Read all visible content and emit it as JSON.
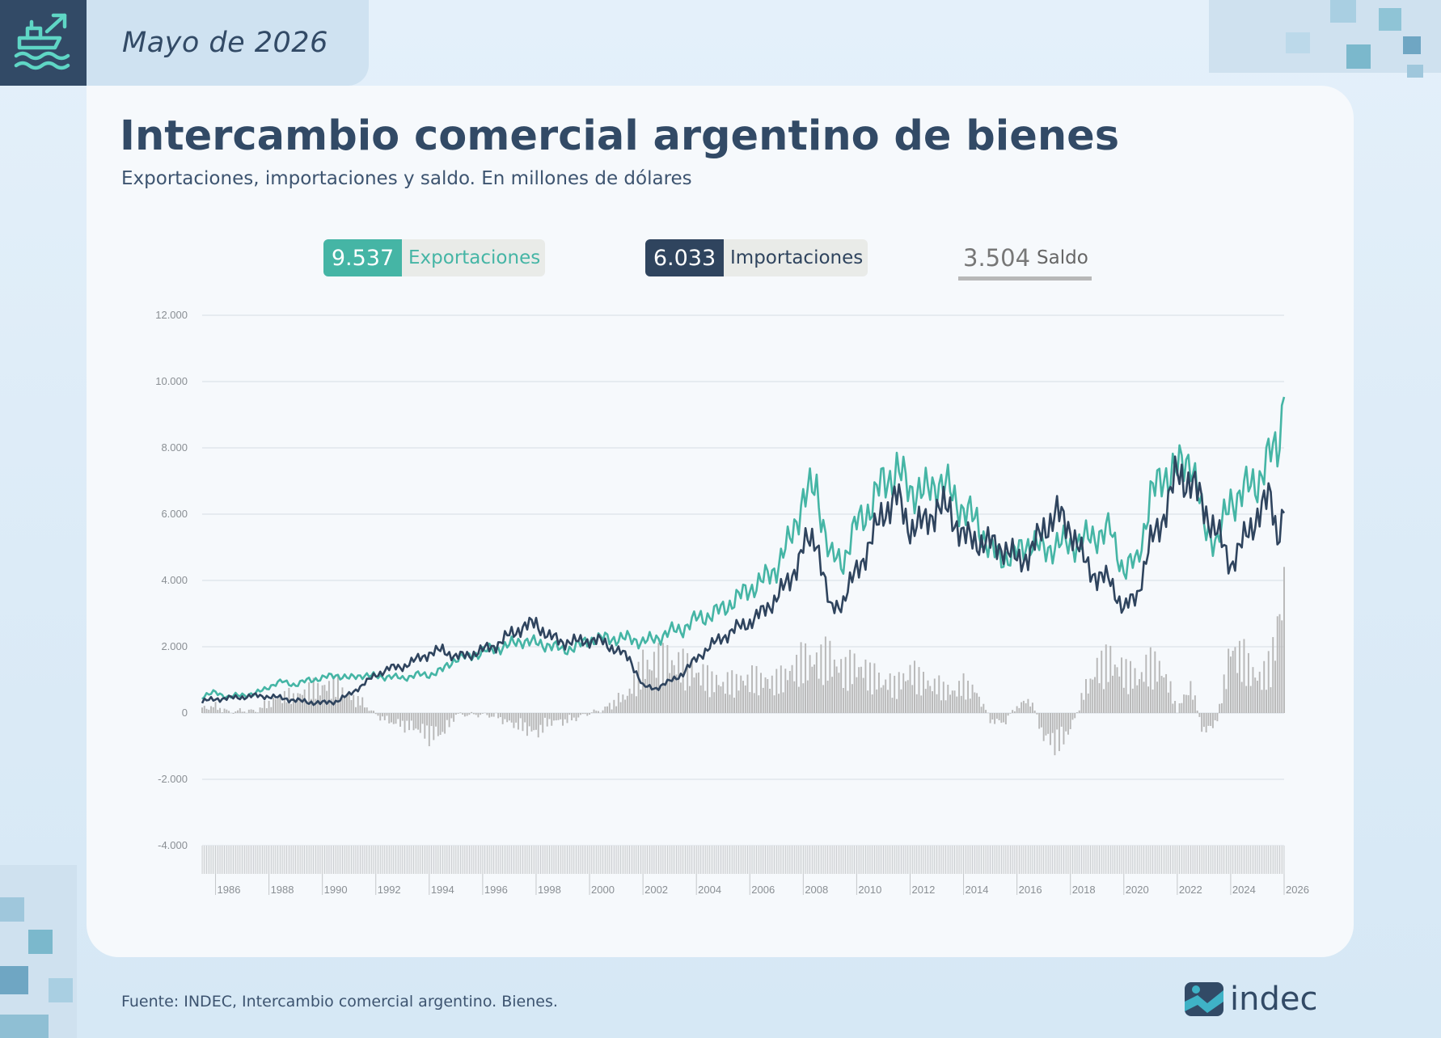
{
  "header": {
    "date_label": "Mayo de 2026",
    "icon": "ship-export-icon"
  },
  "title": "Intercambio comercial argentino de bienes",
  "subtitle": "Exportaciones, importaciones y saldo. En millones de dólares",
  "legend": [
    {
      "value": "9.537",
      "label": "Exportaciones",
      "color": "#45b5a5"
    },
    {
      "value": "6.033",
      "label": "Importaciones",
      "color": "#2f445e"
    },
    {
      "value": "3.504",
      "label": "Saldo",
      "color": "#b8b8b8"
    }
  ],
  "source": "Fuente: INDEC, Intercambio comercial argentino. Bienes.",
  "logo": {
    "text": "indec",
    "icon": "indec-logo-icon"
  },
  "chart_data": {
    "type": "line",
    "y_ticks": [
      "12.000",
      "10.000",
      "8.000",
      "6.000",
      "4.000",
      "2.000",
      "0",
      "-2.000",
      "-4.000"
    ],
    "ylim": [
      -4000,
      12000
    ],
    "x_ticks": [
      "1986",
      "1988",
      "1990",
      "1992",
      "1994",
      "1996",
      "1998",
      "2000",
      "2002",
      "2004",
      "2006",
      "2008",
      "2010",
      "2012",
      "2014",
      "2016",
      "2018",
      "2020",
      "2022",
      "2024",
      "2026"
    ],
    "xlim": [
      1985.5,
      2026.0
    ],
    "grid": true,
    "series": [
      {
        "name": "Exportaciones",
        "color": "#45b5a5",
        "type": "line",
        "points": [
          [
            1985.5,
            500
          ],
          [
            1986,
            620
          ],
          [
            1986.5,
            480
          ],
          [
            1987,
            550
          ],
          [
            1987.5,
            580
          ],
          [
            1988,
            800
          ],
          [
            1988.5,
            950
          ],
          [
            1989,
            850
          ],
          [
            1989.5,
            1000
          ],
          [
            1990,
            1050
          ],
          [
            1990.5,
            1150
          ],
          [
            1991,
            1050
          ],
          [
            1991.5,
            1150
          ],
          [
            1992,
            1100
          ],
          [
            1992.5,
            1100
          ],
          [
            1993,
            1050
          ],
          [
            1993.5,
            1150
          ],
          [
            1994,
            1150
          ],
          [
            1994.5,
            1300
          ],
          [
            1995,
            1650
          ],
          [
            1995.5,
            1700
          ],
          [
            1996,
            1850
          ],
          [
            1996.5,
            1950
          ],
          [
            1997,
            2050
          ],
          [
            1997.5,
            2200
          ],
          [
            1998,
            2100
          ],
          [
            1998.5,
            2050
          ],
          [
            1999,
            1900
          ],
          [
            1999.5,
            2000
          ],
          [
            2000,
            2200
          ],
          [
            2000.5,
            2250
          ],
          [
            2001,
            2250
          ],
          [
            2001.5,
            2250
          ],
          [
            2002,
            2150
          ],
          [
            2002.5,
            2250
          ],
          [
            2003,
            2450
          ],
          [
            2003.5,
            2550
          ],
          [
            2004,
            2850
          ],
          [
            2004.5,
            2950
          ],
          [
            2005,
            3150
          ],
          [
            2005.5,
            3450
          ],
          [
            2006,
            3750
          ],
          [
            2006.5,
            4000
          ],
          [
            2007,
            4400
          ],
          [
            2007.5,
            5200
          ],
          [
            2008,
            6500
          ],
          [
            2008.5,
            6800
          ],
          [
            2009,
            4700
          ],
          [
            2009.5,
            4600
          ],
          [
            2010,
            5700
          ],
          [
            2010.5,
            6200
          ],
          [
            2011,
            7000
          ],
          [
            2011.5,
            7300
          ],
          [
            2012,
            6800
          ],
          [
            2012.5,
            6600
          ],
          [
            2013,
            7000
          ],
          [
            2013.5,
            6700
          ],
          [
            2014,
            6100
          ],
          [
            2014.5,
            5800
          ],
          [
            2015,
            4900
          ],
          [
            2015.5,
            4700
          ],
          [
            2016,
            4800
          ],
          [
            2016.5,
            5200
          ],
          [
            2017,
            4900
          ],
          [
            2017.5,
            5100
          ],
          [
            2018,
            5100
          ],
          [
            2018.5,
            5200
          ],
          [
            2019,
            5400
          ],
          [
            2019.5,
            5500
          ],
          [
            2020,
            4300
          ],
          [
            2020.5,
            4600
          ],
          [
            2021,
            6500
          ],
          [
            2021.5,
            7200
          ],
          [
            2022,
            7300
          ],
          [
            2022.5,
            7800
          ],
          [
            2023,
            5600
          ],
          [
            2023.5,
            5200
          ],
          [
            2024,
            6400
          ],
          [
            2024.5,
            6700
          ],
          [
            2025,
            7000
          ],
          [
            2025.5,
            7800
          ],
          [
            2025.75,
            8000
          ],
          [
            2026.0,
            9537
          ]
        ]
      },
      {
        "name": "Importaciones",
        "color": "#2f445e",
        "type": "line",
        "points": [
          [
            1985.5,
            350
          ],
          [
            1986,
            420
          ],
          [
            1986.5,
            450
          ],
          [
            1987,
            480
          ],
          [
            1987.5,
            520
          ],
          [
            1988,
            500
          ],
          [
            1988.5,
            450
          ],
          [
            1989,
            380
          ],
          [
            1989.5,
            330
          ],
          [
            1990,
            300
          ],
          [
            1990.5,
            350
          ],
          [
            1991,
            550
          ],
          [
            1991.5,
            850
          ],
          [
            1992,
            1150
          ],
          [
            1992.5,
            1350
          ],
          [
            1993,
            1400
          ],
          [
            1993.5,
            1600
          ],
          [
            1994,
            1800
          ],
          [
            1994.5,
            1900
          ],
          [
            1995,
            1700
          ],
          [
            1995.5,
            1750
          ],
          [
            1996,
            1900
          ],
          [
            1996.5,
            2050
          ],
          [
            1997,
            2350
          ],
          [
            1997.5,
            2600
          ],
          [
            1998,
            2700
          ],
          [
            1998.5,
            2300
          ],
          [
            1999,
            2150
          ],
          [
            1999.5,
            2150
          ],
          [
            2000,
            2200
          ],
          [
            2000.5,
            2150
          ],
          [
            2001,
            1900
          ],
          [
            2001.5,
            1650
          ],
          [
            2002,
            800
          ],
          [
            2002.5,
            750
          ],
          [
            2003,
            950
          ],
          [
            2003.5,
            1200
          ],
          [
            2004,
            1650
          ],
          [
            2004.5,
            2000
          ],
          [
            2005,
            2300
          ],
          [
            2005.5,
            2550
          ],
          [
            2006,
            2750
          ],
          [
            2006.5,
            3050
          ],
          [
            2007,
            3500
          ],
          [
            2007.5,
            4000
          ],
          [
            2008,
            5000
          ],
          [
            2008.5,
            5300
          ],
          [
            2009,
            3100
          ],
          [
            2009.5,
            3400
          ],
          [
            2010,
            4300
          ],
          [
            2010.5,
            5100
          ],
          [
            2011,
            6100
          ],
          [
            2011.5,
            6500
          ],
          [
            2012,
            5600
          ],
          [
            2012.5,
            5700
          ],
          [
            2013,
            6200
          ],
          [
            2013.5,
            6100
          ],
          [
            2014,
            5300
          ],
          [
            2014.5,
            5200
          ],
          [
            2015,
            5100
          ],
          [
            2015.5,
            5000
          ],
          [
            2016,
            4600
          ],
          [
            2016.5,
            4800
          ],
          [
            2017,
            5600
          ],
          [
            2017.5,
            6000
          ],
          [
            2018,
            5600
          ],
          [
            2018.5,
            4600
          ],
          [
            2019,
            4100
          ],
          [
            2019.5,
            4000
          ],
          [
            2020,
            3100
          ],
          [
            2020.5,
            3600
          ],
          [
            2021,
            5100
          ],
          [
            2021.5,
            6000
          ],
          [
            2022,
            7200
          ],
          [
            2022.5,
            7000
          ],
          [
            2023,
            6200
          ],
          [
            2023.5,
            5400
          ],
          [
            2024,
            4500
          ],
          [
            2024.5,
            5200
          ],
          [
            2025,
            6000
          ],
          [
            2025.5,
            6500
          ],
          [
            2025.75,
            5400
          ],
          [
            2026.0,
            6033
          ]
        ]
      },
      {
        "name": "Saldo",
        "color": "#b8b8b8",
        "type": "bar",
        "points": [
          [
            1985.5,
            150
          ],
          [
            1986,
            200
          ],
          [
            1986.5,
            30
          ],
          [
            1987,
            70
          ],
          [
            1987.5,
            60
          ],
          [
            1988,
            300
          ],
          [
            1988.5,
            500
          ],
          [
            1989,
            470
          ],
          [
            1989.5,
            670
          ],
          [
            1990,
            750
          ],
          [
            1990.5,
            800
          ],
          [
            1991,
            500
          ],
          [
            1991.5,
            300
          ],
          [
            1992,
            -50
          ],
          [
            1992.5,
            -250
          ],
          [
            1993,
            -350
          ],
          [
            1993.5,
            -450
          ],
          [
            1994,
            -650
          ],
          [
            1994.5,
            -600
          ],
          [
            1995,
            -50
          ],
          [
            1995.5,
            -50
          ],
          [
            1996,
            -50
          ],
          [
            1996.5,
            -100
          ],
          [
            1997,
            -300
          ],
          [
            1997.5,
            -400
          ],
          [
            1998,
            -600
          ],
          [
            1998.5,
            -250
          ],
          [
            1999,
            -250
          ],
          [
            1999.5,
            -150
          ],
          [
            2000,
            0
          ],
          [
            2000.5,
            100
          ],
          [
            2001,
            350
          ],
          [
            2001.5,
            600
          ],
          [
            2002,
            1350
          ],
          [
            2002.5,
            1500
          ],
          [
            2003,
            1500
          ],
          [
            2003.5,
            1350
          ],
          [
            2004,
            1200
          ],
          [
            2004.5,
            950
          ],
          [
            2005,
            850
          ],
          [
            2005.5,
            900
          ],
          [
            2006,
            1000
          ],
          [
            2006.5,
            950
          ],
          [
            2007,
            900
          ],
          [
            2007.5,
            1200
          ],
          [
            2008,
            1500
          ],
          [
            2008.5,
            1500
          ],
          [
            2009,
            1600
          ],
          [
            2009.5,
            1200
          ],
          [
            2010,
            1400
          ],
          [
            2010.5,
            1100
          ],
          [
            2011,
            900
          ],
          [
            2011.5,
            800
          ],
          [
            2012,
            1200
          ],
          [
            2012.5,
            900
          ],
          [
            2013,
            800
          ],
          [
            2013.5,
            600
          ],
          [
            2014,
            800
          ],
          [
            2014.5,
            600
          ],
          [
            2015,
            -200
          ],
          [
            2015.5,
            -300
          ],
          [
            2016,
            200
          ],
          [
            2016.5,
            400
          ],
          [
            2017,
            -700
          ],
          [
            2017.5,
            -900
          ],
          [
            2018,
            -500
          ],
          [
            2018.5,
            600
          ],
          [
            2019,
            1300
          ],
          [
            2019.5,
            1500
          ],
          [
            2020,
            1200
          ],
          [
            2020.5,
            1000
          ],
          [
            2021,
            1400
          ],
          [
            2021.5,
            1200
          ],
          [
            2022,
            100
          ],
          [
            2022.5,
            800
          ],
          [
            2023,
            -600
          ],
          [
            2023.5,
            -200
          ],
          [
            2024,
            1900
          ],
          [
            2024.5,
            1500
          ],
          [
            2025,
            1000
          ],
          [
            2025.5,
            1300
          ],
          [
            2025.75,
            2600
          ],
          [
            2026.0,
            3504
          ]
        ]
      }
    ]
  }
}
